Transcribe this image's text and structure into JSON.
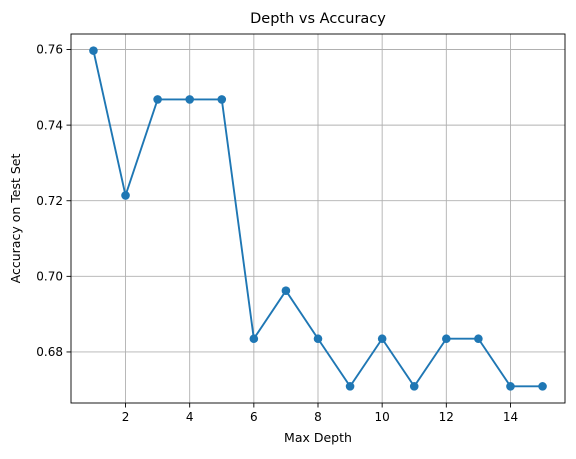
{
  "chart_data": {
    "type": "line",
    "title": "Depth vs Accuracy",
    "xlabel": "Max Depth",
    "ylabel": "Accuracy on Test Set",
    "x": [
      1,
      2,
      3,
      4,
      5,
      6,
      7,
      8,
      9,
      10,
      11,
      12,
      13,
      14,
      15
    ],
    "series": [
      {
        "values": [
          0.7597,
          0.7214,
          0.7468,
          0.7468,
          0.7468,
          0.6835,
          0.6962,
          0.6835,
          0.6709,
          0.6835,
          0.6709,
          0.6835,
          0.6835,
          0.6709,
          0.6709
        ],
        "color": "#1f77b4",
        "marker": "circle"
      }
    ],
    "xlim": [
      0.3,
      15.7
    ],
    "ylim": [
      0.6665,
      0.7641
    ],
    "xticks": [
      2,
      4,
      6,
      8,
      10,
      12,
      14
    ],
    "xtick_labels": [
      "2",
      "4",
      "6",
      "8",
      "10",
      "12",
      "14"
    ],
    "yticks": [
      0.68,
      0.7,
      0.72,
      0.74,
      0.76
    ],
    "ytick_labels": [
      "0.68",
      "0.70",
      "0.72",
      "0.74",
      "0.76"
    ],
    "grid": true,
    "legend": "none"
  }
}
